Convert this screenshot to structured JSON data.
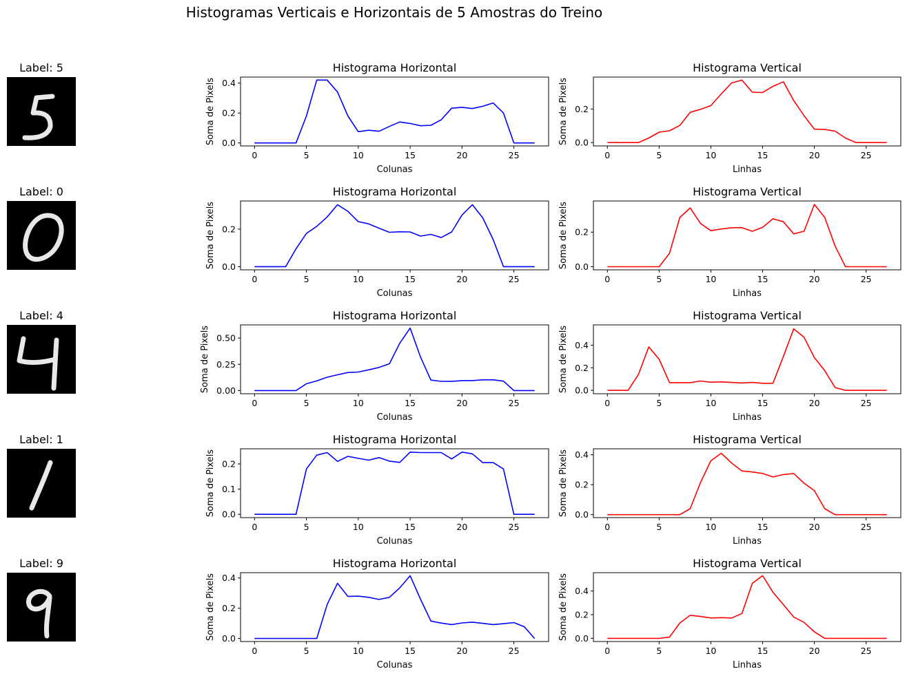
{
  "title": "Histogramas Verticais e Horizontais de 5 Amostras do Treino",
  "chart_data": {
    "type": "line",
    "title": "Histogramas Verticais e Horizontais de 5 Amostras do Treino",
    "x": [
      0,
      1,
      2,
      3,
      4,
      5,
      6,
      7,
      8,
      9,
      10,
      11,
      12,
      13,
      14,
      15,
      16,
      17,
      18,
      19,
      20,
      21,
      22,
      23,
      24,
      25,
      26,
      27
    ],
    "xticks": [
      0,
      5,
      10,
      15,
      20,
      25
    ],
    "samples": [
      {
        "label_text": "Label: 5",
        "digit": 5,
        "horizontal": {
          "title": "Histograma Horizontal",
          "xlabel": "Colunas",
          "ylabel": "Soma de Pixels",
          "color": "#0000ff",
          "ylim": [
            -0.02,
            0.44
          ],
          "yticks": [
            0.0,
            0.2,
            0.4
          ],
          "tick_labels": [
            "0.0",
            "0.2",
            "0.4"
          ],
          "values": [
            0,
            0,
            0,
            0,
            0,
            0.18,
            0.42,
            0.42,
            0.34,
            0.18,
            0.075,
            0.085,
            0.078,
            0.11,
            0.14,
            0.13,
            0.115,
            0.118,
            0.155,
            0.232,
            0.238,
            0.23,
            0.245,
            0.267,
            0.2,
            0,
            0,
            0
          ]
        },
        "vertical": {
          "title": "Histograma Vertical",
          "xlabel": "Linhas",
          "ylabel": "Soma de Pixels",
          "color": "#ff0000",
          "ylim": [
            -0.02,
            0.39
          ],
          "yticks": [
            0.0,
            0.2
          ],
          "tick_labels": [
            "0.0",
            "0.2"
          ],
          "values": [
            0,
            0,
            0,
            0,
            0.027,
            0.062,
            0.07,
            0.102,
            0.18,
            0.198,
            0.22,
            0.29,
            0.355,
            0.372,
            0.3,
            0.298,
            0.335,
            0.362,
            0.25,
            0.16,
            0.08,
            0.078,
            0.068,
            0.027,
            0,
            0,
            0,
            0
          ]
        }
      },
      {
        "label_text": "Label: 0",
        "digit": 0,
        "horizontal": {
          "title": "Histograma Horizontal",
          "xlabel": "Colunas",
          "ylabel": "Soma de Pixels",
          "color": "#0000ff",
          "ylim": [
            -0.017,
            0.35
          ],
          "yticks": [
            0.0,
            0.2
          ],
          "tick_labels": [
            "0.0",
            "0.2"
          ],
          "values": [
            0,
            0,
            0,
            0,
            0.095,
            0.177,
            0.215,
            0.265,
            0.33,
            0.295,
            0.24,
            0.228,
            0.205,
            0.183,
            0.186,
            0.185,
            0.163,
            0.172,
            0.155,
            0.185,
            0.275,
            0.33,
            0.26,
            0.145,
            0,
            0,
            0,
            0
          ]
        },
        "vertical": {
          "title": "Histograma Vertical",
          "xlabel": "Linhas",
          "ylabel": "Soma de Pixels",
          "color": "#ff0000",
          "ylim": [
            -0.018,
            0.38
          ],
          "yticks": [
            0.0,
            0.2
          ],
          "tick_labels": [
            "0.0",
            "0.2"
          ],
          "values": [
            0,
            0,
            0,
            0,
            0,
            0,
            0.078,
            0.285,
            0.34,
            0.25,
            0.208,
            0.218,
            0.225,
            0.226,
            0.205,
            0.228,
            0.277,
            0.26,
            0.19,
            0.205,
            0.36,
            0.285,
            0.12,
            0,
            0,
            0,
            0,
            0
          ]
        }
      },
      {
        "label_text": "Label: 4",
        "digit": 4,
        "horizontal": {
          "title": "Histograma Horizontal",
          "xlabel": "Colunas",
          "ylabel": "Soma de Pixels",
          "color": "#0000ff",
          "ylim": [
            -0.03,
            0.625
          ],
          "yticks": [
            0.0,
            0.25,
            0.5
          ],
          "tick_labels": [
            "0.00",
            "0.25",
            "0.50"
          ],
          "values": [
            0,
            0,
            0,
            0,
            0,
            0.065,
            0.092,
            0.127,
            0.15,
            0.172,
            0.176,
            0.197,
            0.22,
            0.255,
            0.45,
            0.595,
            0.32,
            0.1,
            0.088,
            0.087,
            0.095,
            0.095,
            0.102,
            0.102,
            0.09,
            0,
            0,
            0
          ]
        },
        "vertical": {
          "title": "Histograma Vertical",
          "xlabel": "Linhas",
          "ylabel": "Soma de Pixels",
          "color": "#ff0000",
          "ylim": [
            -0.03,
            0.58
          ],
          "yticks": [
            0.0,
            0.2,
            0.4
          ],
          "tick_labels": [
            "0.0",
            "0.2",
            "0.4"
          ],
          "values": [
            0,
            0,
            0,
            0.14,
            0.385,
            0.275,
            0.068,
            0.068,
            0.068,
            0.083,
            0.072,
            0.075,
            0.07,
            0.065,
            0.07,
            0.063,
            0.063,
            0.3,
            0.545,
            0.47,
            0.29,
            0.175,
            0.025,
            0,
            0,
            0,
            0,
            0
          ]
        }
      },
      {
        "label_text": "Label: 1",
        "digit": 1,
        "horizontal": {
          "title": "Histograma Horizontal",
          "xlabel": "Colunas",
          "ylabel": "Soma de Pixels",
          "color": "#0000ff",
          "ylim": [
            -0.013,
            0.26
          ],
          "yticks": [
            0.0,
            0.1,
            0.2
          ],
          "tick_labels": [
            "0.0",
            "0.1",
            "0.2"
          ],
          "values": [
            0,
            0,
            0,
            0,
            0,
            0.18,
            0.235,
            0.245,
            0.21,
            0.23,
            0.222,
            0.215,
            0.225,
            0.211,
            0.206,
            0.247,
            0.245,
            0.245,
            0.245,
            0.22,
            0.247,
            0.24,
            0.205,
            0.205,
            0.18,
            0,
            0,
            0
          ]
        },
        "vertical": {
          "title": "Histograma Vertical",
          "xlabel": "Linhas",
          "ylabel": "Soma de Pixels",
          "color": "#ff0000",
          "ylim": [
            -0.02,
            0.44
          ],
          "yticks": [
            0.0,
            0.2,
            0.4
          ],
          "tick_labels": [
            "0.0",
            "0.2",
            "0.4"
          ],
          "values": [
            0,
            0,
            0,
            0,
            0,
            0,
            0,
            0,
            0.04,
            0.215,
            0.36,
            0.41,
            0.345,
            0.292,
            0.285,
            0.275,
            0.252,
            0.268,
            0.275,
            0.21,
            0.16,
            0.04,
            0,
            0,
            0,
            0,
            0,
            0
          ]
        }
      },
      {
        "label_text": "Label: 9",
        "digit": 9,
        "horizontal": {
          "title": "Histograma Horizontal",
          "xlabel": "Colunas",
          "ylabel": "Soma de Pixels",
          "color": "#0000ff",
          "ylim": [
            -0.02,
            0.435
          ],
          "yticks": [
            0.0,
            0.2,
            0.4
          ],
          "tick_labels": [
            "0.0",
            "0.2",
            "0.4"
          ],
          "values": [
            0,
            0,
            0,
            0,
            0,
            0,
            0,
            0.225,
            0.365,
            0.278,
            0.28,
            0.272,
            0.258,
            0.272,
            0.335,
            0.415,
            0.26,
            0.115,
            0.102,
            0.092,
            0.103,
            0.108,
            0.1,
            0.092,
            0.098,
            0.105,
            0.078,
            0
          ]
        },
        "vertical": {
          "title": "Histograma Vertical",
          "xlabel": "Linhas",
          "ylabel": "Soma de Pixels",
          "color": "#ff0000",
          "ylim": [
            -0.027,
            0.555
          ],
          "yticks": [
            0.0,
            0.2,
            0.4
          ],
          "tick_labels": [
            "0.0",
            "0.2",
            "0.4"
          ],
          "values": [
            0,
            0,
            0,
            0,
            0,
            0,
            0.01,
            0.13,
            0.195,
            0.185,
            0.172,
            0.175,
            0.172,
            0.21,
            0.465,
            0.53,
            0.39,
            0.285,
            0.18,
            0.135,
            0.055,
            0,
            0,
            0,
            0,
            0,
            0,
            0
          ]
        }
      }
    ]
  }
}
